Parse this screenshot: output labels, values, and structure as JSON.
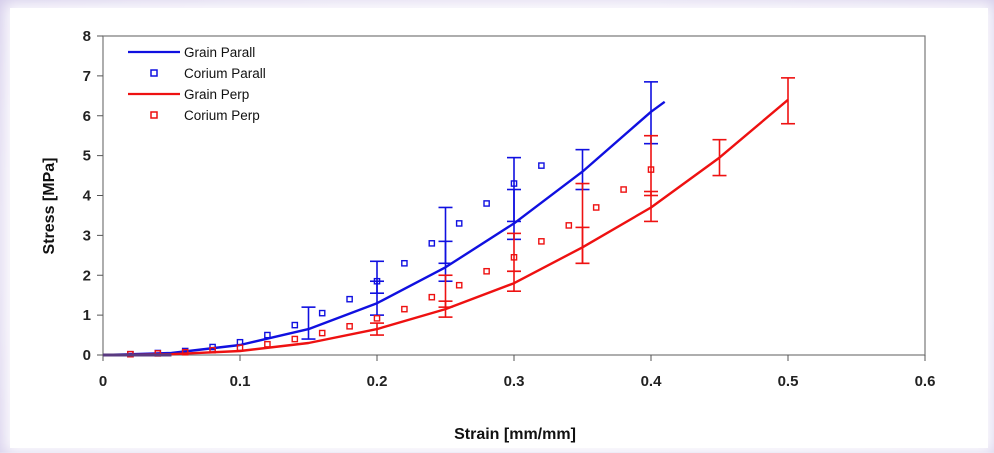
{
  "chart_data": {
    "type": "line",
    "title": "",
    "xlabel": "Strain [mm/mm]",
    "ylabel": "Stress [MPa]",
    "xlim": [
      0,
      0.6
    ],
    "ylim": [
      0,
      8
    ],
    "x_ticks": [
      "0",
      "0.1",
      "0.2",
      "0.3",
      "0.4",
      "0.5",
      "0.6"
    ],
    "y_ticks": [
      "0",
      "1",
      "2",
      "3",
      "4",
      "5",
      "6",
      "7",
      "8"
    ],
    "grid": false,
    "legend_position": "top-left",
    "series": [
      {
        "name": "Grain Parall",
        "style": "line",
        "color": "#1010e0",
        "x": [
          0,
          0.05,
          0.1,
          0.15,
          0.2,
          0.25,
          0.3,
          0.35,
          0.4,
          0.41
        ],
        "y": [
          0,
          0.05,
          0.25,
          0.65,
          1.3,
          2.2,
          3.3,
          4.6,
          6.1,
          6.35
        ],
        "error_x": [
          0.15,
          0.2,
          0.25,
          0.3,
          0.35,
          0.4
        ],
        "error_y": [
          0.65,
          1.3,
          2.2,
          3.3,
          4.6,
          6.1
        ],
        "error_low": [
          0.25,
          0.3,
          0.35,
          0.4,
          0.45,
          0.8
        ],
        "error_high": [
          0.55,
          0.55,
          0.65,
          0.85,
          0.55,
          0.75
        ]
      },
      {
        "name": "Corium Parall",
        "style": "markers",
        "color": "#1010e0",
        "x": [
          0.02,
          0.04,
          0.06,
          0.08,
          0.1,
          0.12,
          0.14,
          0.16,
          0.18,
          0.2,
          0.22,
          0.24,
          0.26,
          0.28,
          0.3,
          0.32
        ],
        "y": [
          0.02,
          0.05,
          0.1,
          0.2,
          0.32,
          0.5,
          0.75,
          1.05,
          1.4,
          1.85,
          2.3,
          2.8,
          3.3,
          3.8,
          4.3,
          4.75
        ],
        "error_x": [
          0.2,
          0.25,
          0.3
        ],
        "error_y": [
          1.9,
          3.0,
          4.1
        ],
        "error_low": [
          0.35,
          0.7,
          0.75
        ],
        "error_high": [
          0.45,
          0.7,
          0.85
        ]
      },
      {
        "name": "Grain Perp",
        "style": "line",
        "color": "#ee1111",
        "x": [
          0,
          0.05,
          0.1,
          0.15,
          0.2,
          0.25,
          0.3,
          0.35,
          0.4,
          0.45,
          0.5
        ],
        "y": [
          0,
          0.02,
          0.1,
          0.3,
          0.65,
          1.15,
          1.8,
          2.7,
          3.7,
          4.95,
          6.4
        ],
        "error_x": [
          0.2,
          0.25,
          0.3,
          0.35,
          0.4,
          0.45,
          0.5
        ],
        "error_y": [
          0.65,
          1.15,
          1.8,
          2.7,
          3.7,
          4.95,
          6.4
        ],
        "error_low": [
          0.15,
          0.2,
          0.2,
          0.4,
          0.35,
          0.45,
          0.6
        ],
        "error_high": [
          0.15,
          0.2,
          0.3,
          0.5,
          0.4,
          0.45,
          0.55
        ]
      },
      {
        "name": "Corium Perp",
        "style": "markers",
        "color": "#ee1111",
        "x": [
          0.02,
          0.04,
          0.06,
          0.08,
          0.1,
          0.12,
          0.14,
          0.16,
          0.18,
          0.2,
          0.22,
          0.24,
          0.26,
          0.28,
          0.3,
          0.32,
          0.34,
          0.36,
          0.38,
          0.4
        ],
        "y": [
          0.02,
          0.04,
          0.07,
          0.12,
          0.18,
          0.27,
          0.4,
          0.55,
          0.72,
          0.92,
          1.15,
          1.45,
          1.75,
          2.1,
          2.45,
          2.85,
          3.25,
          3.7,
          4.15,
          4.65
        ],
        "error_x": [
          0.25,
          0.3,
          0.35,
          0.4
        ],
        "error_y": [
          1.6,
          2.55,
          3.3,
          4.4
        ],
        "error_low": [
          0.4,
          0.45,
          1.0,
          0.4
        ],
        "error_high": [
          0.4,
          0.5,
          1.0,
          1.1
        ]
      }
    ]
  }
}
